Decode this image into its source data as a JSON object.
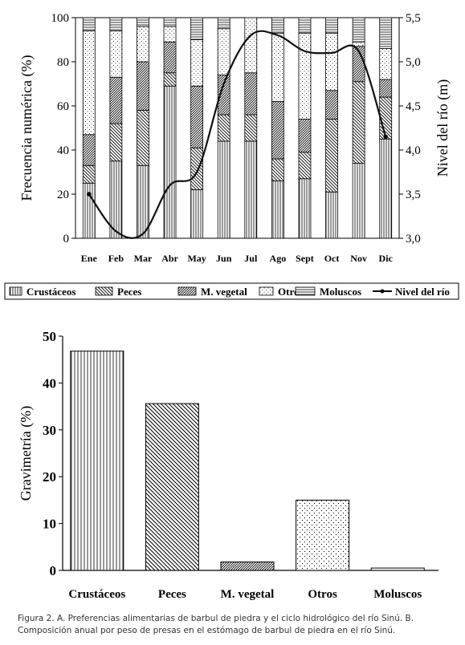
{
  "chart_data": [
    {
      "type": "bar",
      "stacked": true,
      "secondary_type": "line",
      "categories": [
        "Ene",
        "Feb",
        "Mar",
        "Abr",
        "May",
        "Jun",
        "Jul",
        "Ago",
        "Sept",
        "Oct",
        "Nov",
        "Dic"
      ],
      "ylabel": "Frecuencia numérica (%)",
      "ylim": [
        0,
        100
      ],
      "yticks": [
        "0",
        "20",
        "40",
        "60",
        "80",
        "100"
      ],
      "y2label": "Nivel del río (m)",
      "y2lim": [
        3.0,
        5.5
      ],
      "y2ticks": [
        "3,0",
        "3,5",
        "4,0",
        "4,5",
        "5,0",
        "5,5"
      ],
      "legend_position": "bottom",
      "series": [
        {
          "name": "Crustáceos",
          "pattern": "vertical",
          "values": [
            25,
            35,
            33,
            69,
            22,
            44,
            44,
            26,
            27,
            21,
            34,
            45
          ]
        },
        {
          "name": "Peces",
          "pattern": "diag-back",
          "values": [
            8,
            17,
            25,
            6,
            19,
            12,
            12,
            10,
            12,
            33,
            37,
            19
          ]
        },
        {
          "name": "M. vegetal",
          "pattern": "diag-fwd",
          "values": [
            14,
            21,
            22,
            14,
            28,
            18,
            19,
            26,
            15,
            13,
            16,
            8
          ]
        },
        {
          "name": "Otros",
          "pattern": "dots",
          "values": [
            47,
            21,
            16,
            7,
            21,
            21,
            25,
            31,
            39,
            26,
            2,
            14
          ]
        },
        {
          "name": "Moluscos",
          "pattern": "horizontal",
          "values": [
            6,
            6,
            4,
            4,
            10,
            5,
            0,
            7,
            7,
            7,
            11,
            14
          ]
        }
      ],
      "line_series": {
        "name": "Nivel del río",
        "values": [
          3.5,
          3.08,
          3.05,
          3.6,
          3.75,
          4.75,
          5.3,
          5.3,
          5.12,
          5.1,
          5.12,
          4.15
        ]
      }
    },
    {
      "type": "bar",
      "categories": [
        "Crustáceos",
        "Peces",
        "M. vegetal",
        "Otros",
        "Moluscos"
      ],
      "values": [
        46.8,
        35.6,
        1.8,
        15.0,
        0.5
      ],
      "patterns": [
        "vertical",
        "diag-back",
        "diag-fwd",
        "dots",
        "horizontal"
      ],
      "ylabel": "Gravimetría (%)",
      "ylim": [
        0,
        50
      ],
      "yticks": [
        "0",
        "10",
        "20",
        "30",
        "40",
        "50"
      ]
    }
  ],
  "caption": {
    "line1": "Figura 2. A. Preferencias alimentarias de barbul de piedra y el ciclo hidrológico del río Sinú. B.",
    "line2": "Composición anual por peso de presas en el estómago de barbul de piedra en el río Sinú."
  }
}
